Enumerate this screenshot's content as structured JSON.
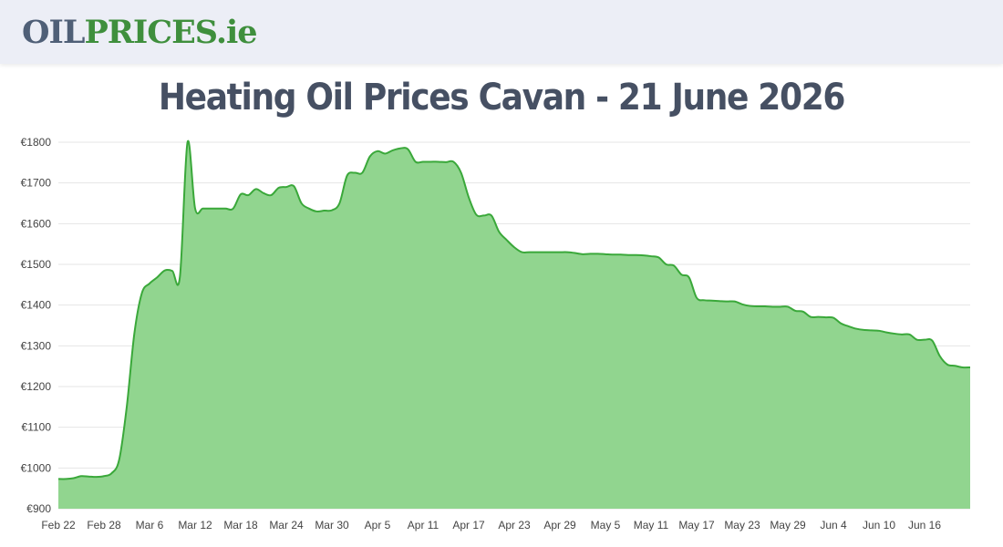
{
  "header": {
    "logo_part1": "OIL",
    "logo_part2": "PRICES",
    "logo_part3": ".ie"
  },
  "page_title": "Heating Oil Prices Cavan - 21 June 2026",
  "colors": {
    "fill": "#91d58f",
    "line": "#3aa83a",
    "grid": "#e4e4e4"
  },
  "chart_data": {
    "type": "area",
    "title": "",
    "xlabel": "",
    "ylabel": "",
    "ylim": [
      900,
      1800
    ],
    "yticks": [
      900,
      1000,
      1100,
      1200,
      1300,
      1400,
      1500,
      1600,
      1700,
      1800
    ],
    "ytick_labels": [
      "€900",
      "€1000",
      "€1100",
      "€1200",
      "€1300",
      "€1400",
      "€1500",
      "€1600",
      "€1700",
      "€1800"
    ],
    "xlim": [
      "2026-02-22",
      "2026-06-21"
    ],
    "xtick_dates": [
      "2026-02-22",
      "2026-02-28",
      "2026-03-06",
      "2026-03-12",
      "2026-03-18",
      "2026-03-24",
      "2026-03-30",
      "2026-04-05",
      "2026-04-11",
      "2026-04-17",
      "2026-04-23",
      "2026-04-29",
      "2026-05-05",
      "2026-05-11",
      "2026-05-17",
      "2026-05-23",
      "2026-05-29",
      "2026-06-04",
      "2026-06-10",
      "2026-06-16"
    ],
    "xtick_labels": [
      "Feb 22",
      "Feb 28",
      "Mar 6",
      "Mar 12",
      "Mar 18",
      "Mar 24",
      "Mar 30",
      "Apr 5",
      "Apr 11",
      "Apr 17",
      "Apr 23",
      "Apr 29",
      "May 5",
      "May 11",
      "May 17",
      "May 23",
      "May 29",
      "Jun 4",
      "Jun 10",
      "Jun 16"
    ],
    "grid": true,
    "legend": "none",
    "points": [
      [
        "2026-02-22",
        973
      ],
      [
        "2026-02-23",
        973
      ],
      [
        "2026-02-24",
        975
      ],
      [
        "2026-02-25",
        980
      ],
      [
        "2026-02-26",
        979
      ],
      [
        "2026-02-27",
        978
      ],
      [
        "2026-02-28",
        980
      ],
      [
        "2026-03-01",
        987
      ],
      [
        "2026-03-02",
        1020
      ],
      [
        "2026-03-03",
        1150
      ],
      [
        "2026-03-04",
        1330
      ],
      [
        "2026-03-05",
        1430
      ],
      [
        "2026-03-06",
        1453
      ],
      [
        "2026-03-07",
        1468
      ],
      [
        "2026-03-08",
        1485
      ],
      [
        "2026-03-09",
        1484
      ],
      [
        "2026-03-10",
        1470
      ],
      [
        "2026-03-11",
        1800
      ],
      [
        "2026-03-12",
        1637
      ],
      [
        "2026-03-13",
        1637
      ],
      [
        "2026-03-14",
        1637
      ],
      [
        "2026-03-15",
        1637
      ],
      [
        "2026-03-16",
        1637
      ],
      [
        "2026-03-17",
        1637
      ],
      [
        "2026-03-18",
        1672
      ],
      [
        "2026-03-19",
        1670
      ],
      [
        "2026-03-20",
        1685
      ],
      [
        "2026-03-21",
        1675
      ],
      [
        "2026-03-22",
        1670
      ],
      [
        "2026-03-23",
        1688
      ],
      [
        "2026-03-24",
        1690
      ],
      [
        "2026-03-25",
        1692
      ],
      [
        "2026-03-26",
        1650
      ],
      [
        "2026-03-27",
        1637
      ],
      [
        "2026-03-28",
        1630
      ],
      [
        "2026-03-29",
        1632
      ],
      [
        "2026-03-30",
        1633
      ],
      [
        "2026-03-31",
        1650
      ],
      [
        "2026-04-01",
        1718
      ],
      [
        "2026-04-02",
        1725
      ],
      [
        "2026-04-03",
        1725
      ],
      [
        "2026-04-04",
        1765
      ],
      [
        "2026-04-05",
        1778
      ],
      [
        "2026-04-06",
        1772
      ],
      [
        "2026-04-07",
        1780
      ],
      [
        "2026-04-08",
        1785
      ],
      [
        "2026-04-09",
        1783
      ],
      [
        "2026-04-10",
        1752
      ],
      [
        "2026-04-11",
        1752
      ],
      [
        "2026-04-12",
        1752
      ],
      [
        "2026-04-13",
        1752
      ],
      [
        "2026-04-14",
        1751
      ],
      [
        "2026-04-15",
        1752
      ],
      [
        "2026-04-16",
        1725
      ],
      [
        "2026-04-17",
        1665
      ],
      [
        "2026-04-18",
        1622
      ],
      [
        "2026-04-19",
        1620
      ],
      [
        "2026-04-20",
        1620
      ],
      [
        "2026-04-21",
        1580
      ],
      [
        "2026-04-22",
        1560
      ],
      [
        "2026-04-23",
        1542
      ],
      [
        "2026-04-24",
        1530
      ],
      [
        "2026-04-25",
        1530
      ],
      [
        "2026-04-26",
        1530
      ],
      [
        "2026-04-27",
        1530
      ],
      [
        "2026-04-28",
        1530
      ],
      [
        "2026-04-29",
        1530
      ],
      [
        "2026-04-30",
        1530
      ],
      [
        "2026-05-01",
        1528
      ],
      [
        "2026-05-02",
        1525
      ],
      [
        "2026-05-03",
        1526
      ],
      [
        "2026-05-04",
        1526
      ],
      [
        "2026-05-05",
        1525
      ],
      [
        "2026-05-06",
        1524
      ],
      [
        "2026-05-07",
        1524
      ],
      [
        "2026-05-08",
        1523
      ],
      [
        "2026-05-09",
        1523
      ],
      [
        "2026-05-10",
        1522
      ],
      [
        "2026-05-11",
        1520
      ],
      [
        "2026-05-12",
        1517
      ],
      [
        "2026-05-13",
        1500
      ],
      [
        "2026-05-14",
        1497
      ],
      [
        "2026-05-15",
        1475
      ],
      [
        "2026-05-16",
        1468
      ],
      [
        "2026-05-17",
        1418
      ],
      [
        "2026-05-18",
        1412
      ],
      [
        "2026-05-19",
        1411
      ],
      [
        "2026-05-20",
        1410
      ],
      [
        "2026-05-21",
        1409
      ],
      [
        "2026-05-22",
        1409
      ],
      [
        "2026-05-23",
        1402
      ],
      [
        "2026-05-24",
        1398
      ],
      [
        "2026-05-25",
        1397
      ],
      [
        "2026-05-26",
        1397
      ],
      [
        "2026-05-27",
        1396
      ],
      [
        "2026-05-28",
        1396
      ],
      [
        "2026-05-29",
        1396
      ],
      [
        "2026-05-30",
        1386
      ],
      [
        "2026-05-31",
        1384
      ],
      [
        "2026-06-01",
        1371
      ],
      [
        "2026-06-02",
        1371
      ],
      [
        "2026-06-03",
        1370
      ],
      [
        "2026-06-04",
        1369
      ],
      [
        "2026-06-05",
        1355
      ],
      [
        "2026-06-06",
        1348
      ],
      [
        "2026-06-07",
        1342
      ],
      [
        "2026-06-08",
        1339
      ],
      [
        "2026-06-09",
        1338
      ],
      [
        "2026-06-10",
        1337
      ],
      [
        "2026-06-11",
        1333
      ],
      [
        "2026-06-12",
        1330
      ],
      [
        "2026-06-13",
        1328
      ],
      [
        "2026-06-14",
        1328
      ],
      [
        "2026-06-15",
        1315
      ],
      [
        "2026-06-16",
        1315
      ],
      [
        "2026-06-17",
        1313
      ],
      [
        "2026-06-18",
        1275
      ],
      [
        "2026-06-19",
        1254
      ],
      [
        "2026-06-20",
        1251
      ],
      [
        "2026-06-21",
        1247
      ],
      [
        "2026-06-22",
        1247
      ]
    ]
  }
}
